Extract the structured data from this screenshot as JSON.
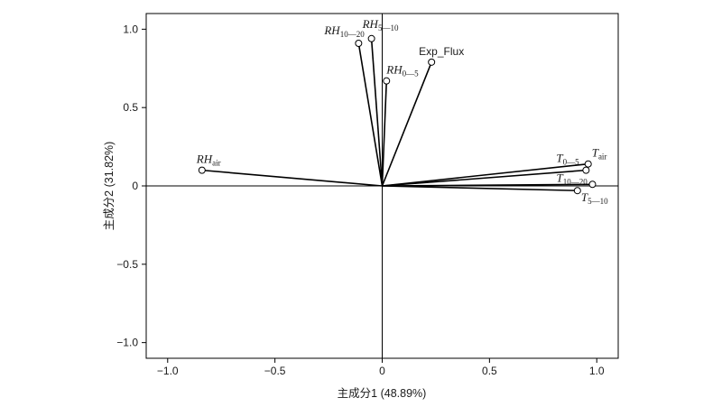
{
  "chart_data": {
    "type": "scatter",
    "subtype": "pca-biplot",
    "xlabel": "主成分1 (48.89%)",
    "ylabel": "主成分2 (31.82%)",
    "xlim": [
      -1.1,
      1.1
    ],
    "ylim": [
      -1.1,
      1.1
    ],
    "xticks": [
      -1.0,
      -0.5,
      0,
      0.5,
      1.0
    ],
    "xtick_labels": [
      "−1.0",
      "−0.5",
      "0",
      "0.5",
      "1.0"
    ],
    "yticks": [
      -1.0,
      -0.5,
      0,
      0.5,
      1.0
    ],
    "ytick_labels": [
      "−1.0",
      "−0.5",
      "0",
      "0.5",
      "1.0"
    ],
    "grid": false,
    "zero_lines": true,
    "vectors": [
      {
        "id": "rh-air",
        "main": "RH",
        "sub": "air",
        "italic": true,
        "x": -0.84,
        "y": 0.1
      },
      {
        "id": "rh-10-20",
        "main": "RH",
        "sub": "10—20",
        "italic": true,
        "x": -0.11,
        "y": 0.91
      },
      {
        "id": "rh-5-10",
        "main": "RH",
        "sub": "5—10",
        "italic": true,
        "x": -0.05,
        "y": 0.94
      },
      {
        "id": "rh-0-5",
        "main": "RH",
        "sub": "0—5",
        "italic": true,
        "x": 0.02,
        "y": 0.67
      },
      {
        "id": "exp-flux",
        "main": "Exp_Flux",
        "sub": "",
        "italic": false,
        "x": 0.23,
        "y": 0.79
      },
      {
        "id": "t-0-5",
        "main": "T",
        "sub": "0—5",
        "italic": true,
        "x": 0.95,
        "y": 0.1
      },
      {
        "id": "t-air",
        "main": "T",
        "sub": "air",
        "italic": true,
        "x": 0.96,
        "y": 0.14
      },
      {
        "id": "t-10-20",
        "main": "T",
        "sub": "10—20",
        "italic": true,
        "x": 0.98,
        "y": 0.01
      },
      {
        "id": "t-5-10",
        "main": "T",
        "sub": "5—10",
        "italic": true,
        "x": 0.91,
        "y": -0.03
      }
    ]
  }
}
